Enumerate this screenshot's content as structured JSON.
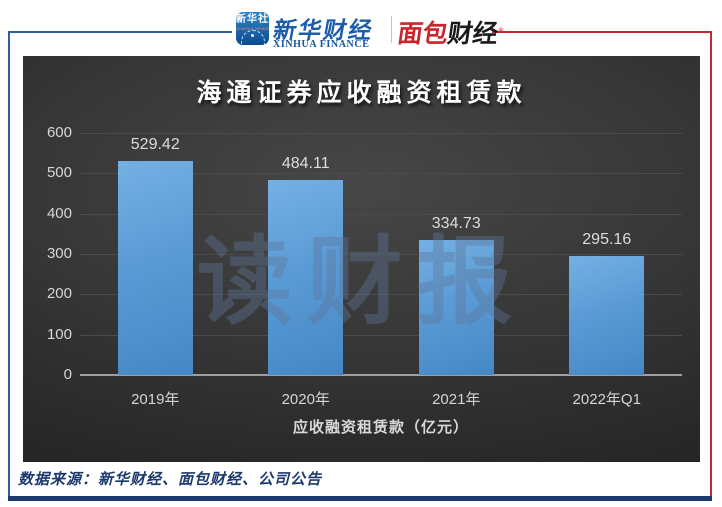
{
  "header": {
    "xinhua_icon": {
      "line1": "新华社",
      "line2": "XINHUA NEWS"
    },
    "xinhua_finance": {
      "cn": "新华财经",
      "en": "XINHUA FINANCE"
    },
    "mianbao": {
      "cn_red": "面包",
      "cn_black": "财经",
      "reg_mark": "®"
    },
    "colors": {
      "left_line": "#2d5fa0",
      "right_line": "#bf2a30",
      "bottom_line": "#1d3a6e"
    }
  },
  "chart_data": {
    "type": "bar",
    "title": "海通证券应收融资租赁款",
    "categories": [
      "2019年",
      "2020年",
      "2021年",
      "2022年Q1"
    ],
    "values": [
      529.42,
      484.11,
      334.73,
      295.16
    ],
    "value_labels": [
      "529.42",
      "484.11",
      "334.73",
      "295.16"
    ],
    "xlabel": "应收融资租赁款（亿元）",
    "ylabel": "",
    "ylim": [
      0,
      600
    ],
    "yticks": [
      0,
      100,
      200,
      300,
      400,
      500,
      600
    ],
    "grid": true,
    "legend": false,
    "bar_color": "#5b9bd5",
    "background": "dark-gray-gradient",
    "watermark": "读财报"
  },
  "footer": {
    "source": "数据来源：新华财经、面包财经、公司公告"
  }
}
